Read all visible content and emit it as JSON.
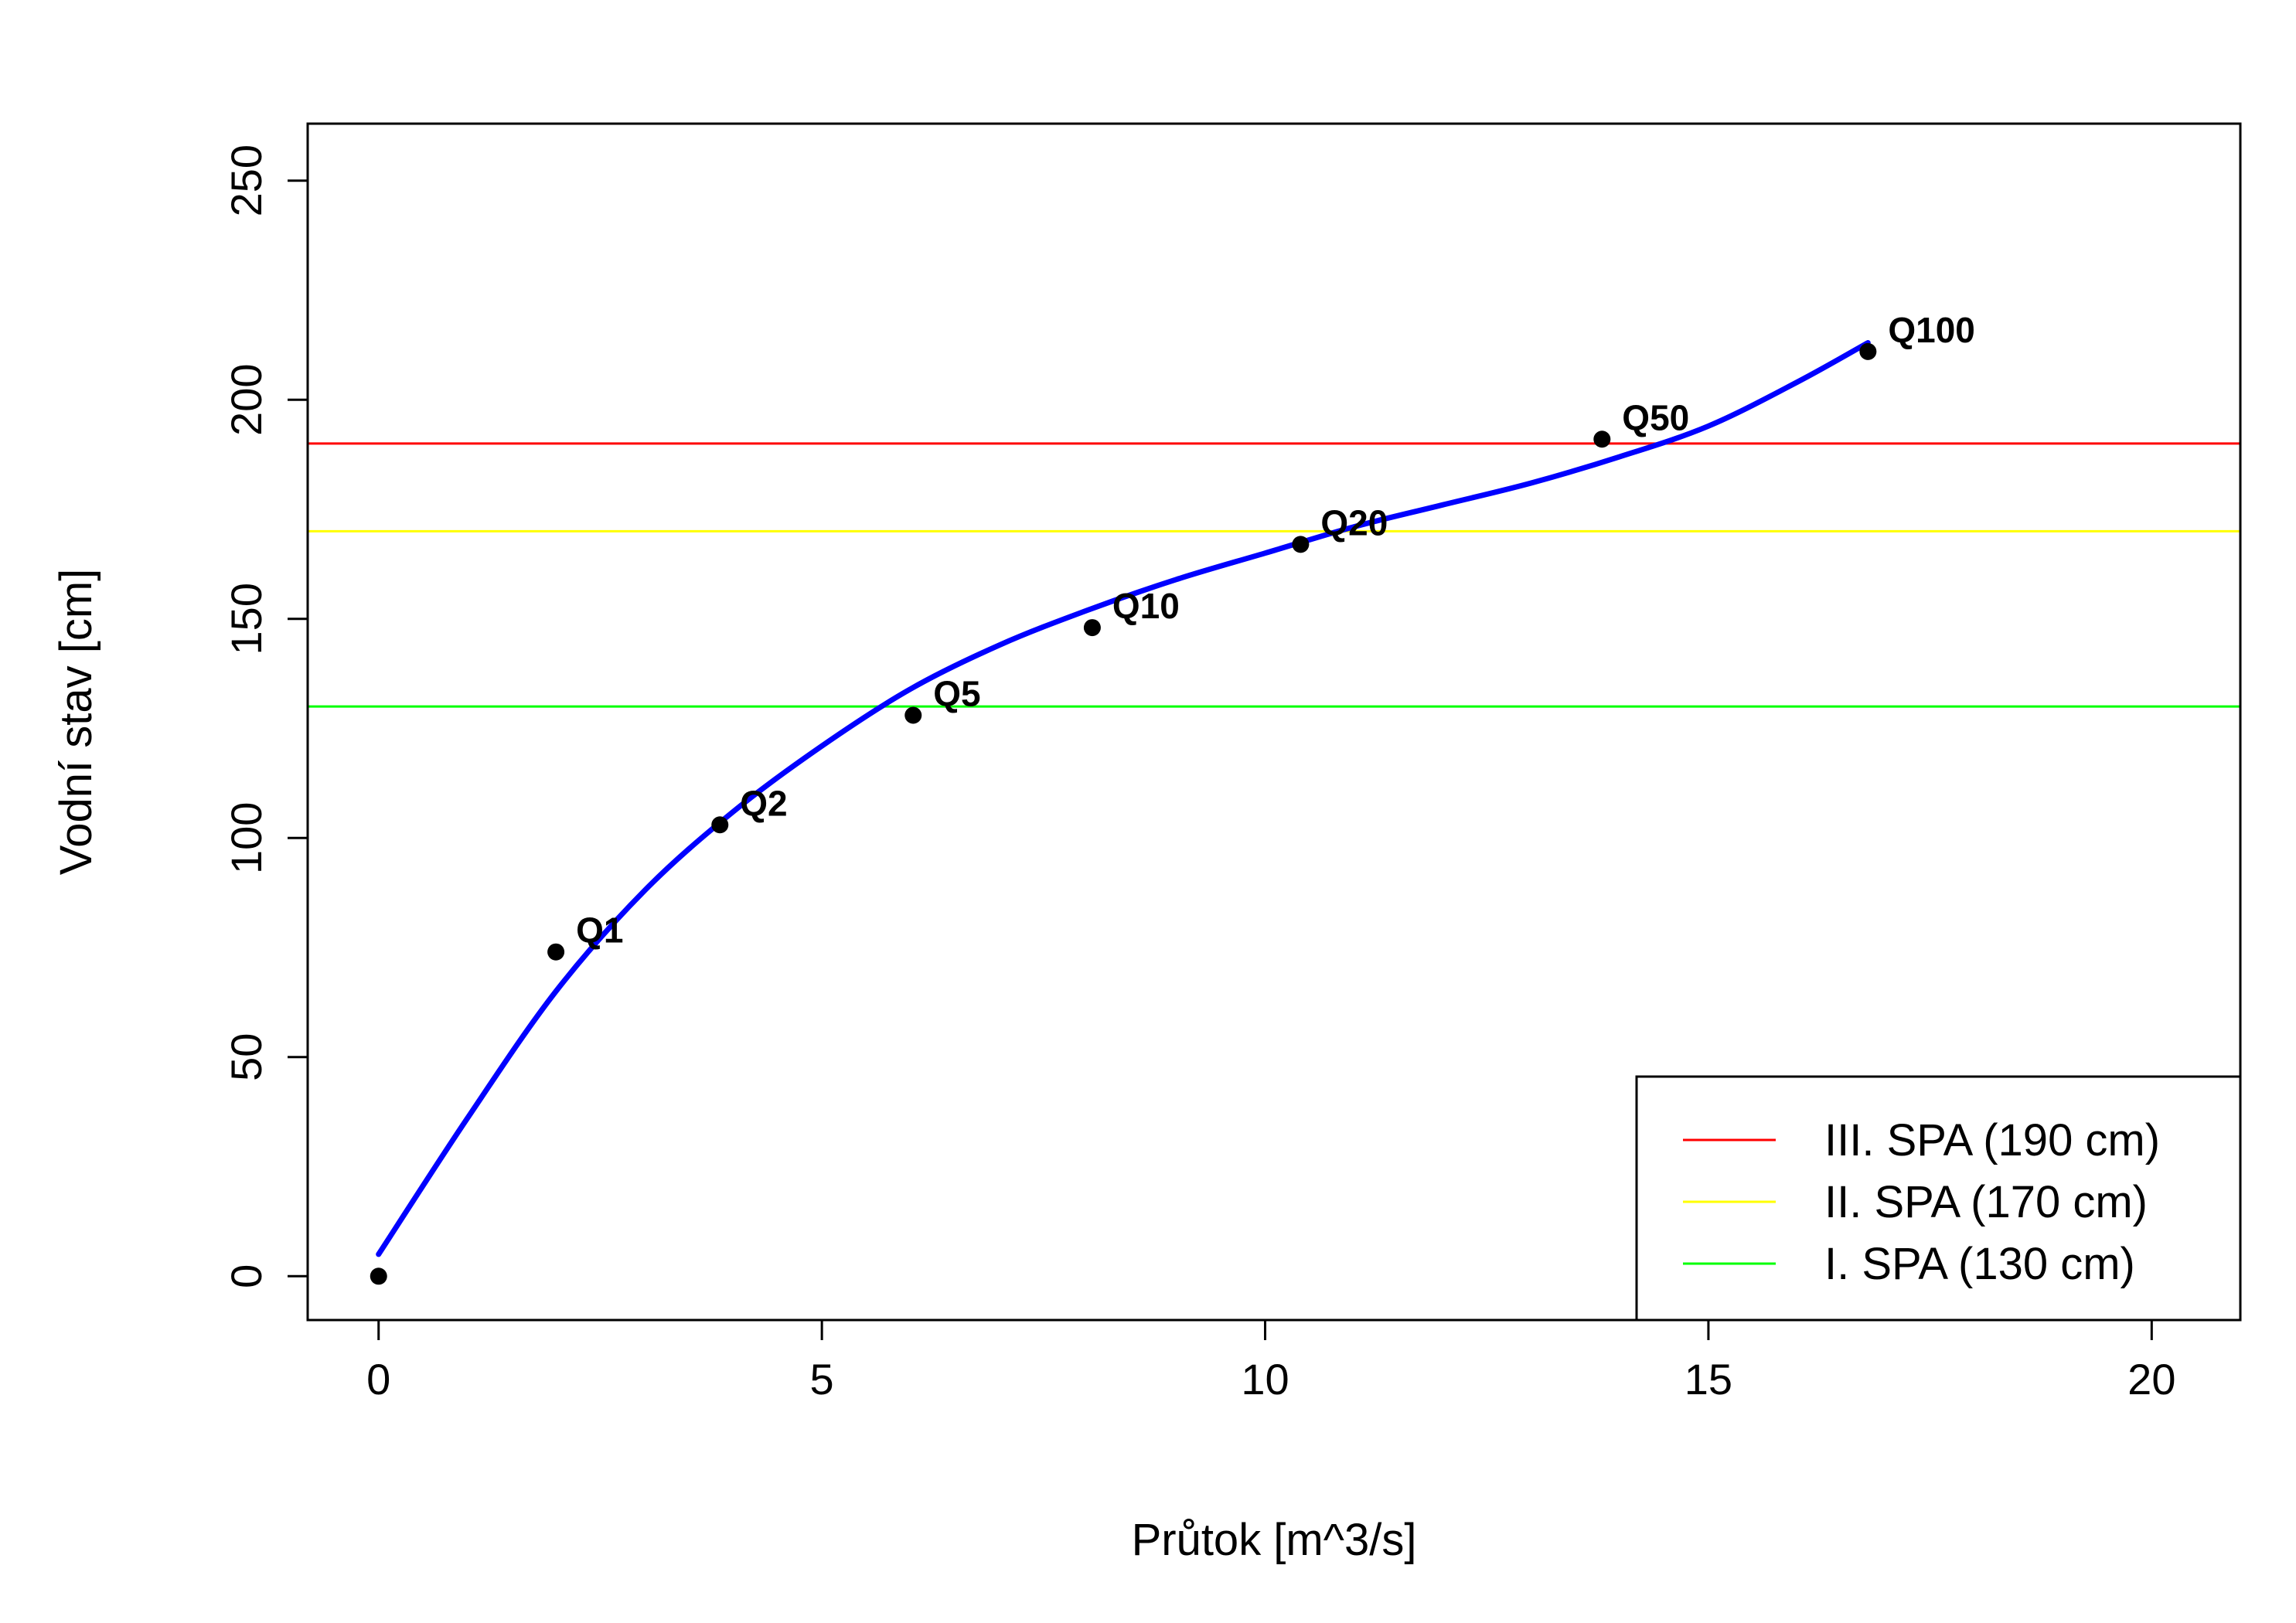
{
  "chart_data": {
    "type": "scatter",
    "title": "",
    "xlabel": "Průtok [m^3/s]",
    "ylabel": "Vodní stav [cm]",
    "xlim": [
      -0.8,
      21
    ],
    "ylim": [
      -10,
      263
    ],
    "xticks": [
      0,
      5,
      10,
      15,
      20
    ],
    "yticks": [
      0,
      50,
      100,
      150,
      200,
      250
    ],
    "grid": false,
    "points": [
      {
        "label": "",
        "x": 0,
        "y": 0
      },
      {
        "label": "Q1",
        "x": 2.0,
        "y": 74
      },
      {
        "label": "Q2",
        "x": 3.85,
        "y": 103
      },
      {
        "label": "Q5",
        "x": 6.03,
        "y": 128
      },
      {
        "label": "Q10",
        "x": 8.05,
        "y": 148
      },
      {
        "label": "Q20",
        "x": 10.4,
        "y": 167
      },
      {
        "label": "Q50",
        "x": 13.8,
        "y": 191
      },
      {
        "label": "Q100",
        "x": 16.8,
        "y": 211
      }
    ],
    "fit_curve": {
      "color": "#0000ff",
      "x": [
        0,
        1,
        2,
        3,
        4,
        5,
        6,
        7,
        8,
        9,
        10,
        11,
        12,
        13,
        14,
        15,
        16,
        16.8
      ],
      "y": [
        5,
        36,
        65,
        88,
        106,
        121,
        134,
        144,
        152,
        159,
        165,
        171,
        176,
        181,
        187,
        194,
        204,
        213
      ]
    },
    "hlines": [
      {
        "name": "III. SPA (190 cm)",
        "y": 190,
        "color": "#ff0000"
      },
      {
        "name": "II. SPA (170 cm)",
        "y": 170,
        "color": "#ffff00"
      },
      {
        "name": "I. SPA (130 cm)",
        "y": 130,
        "color": "#00ff00"
      }
    ],
    "legend": {
      "position": "bottom-right",
      "entries": [
        "III. SPA (190 cm)",
        "II. SPA (170 cm)",
        "I. SPA (130 cm)"
      ]
    }
  }
}
